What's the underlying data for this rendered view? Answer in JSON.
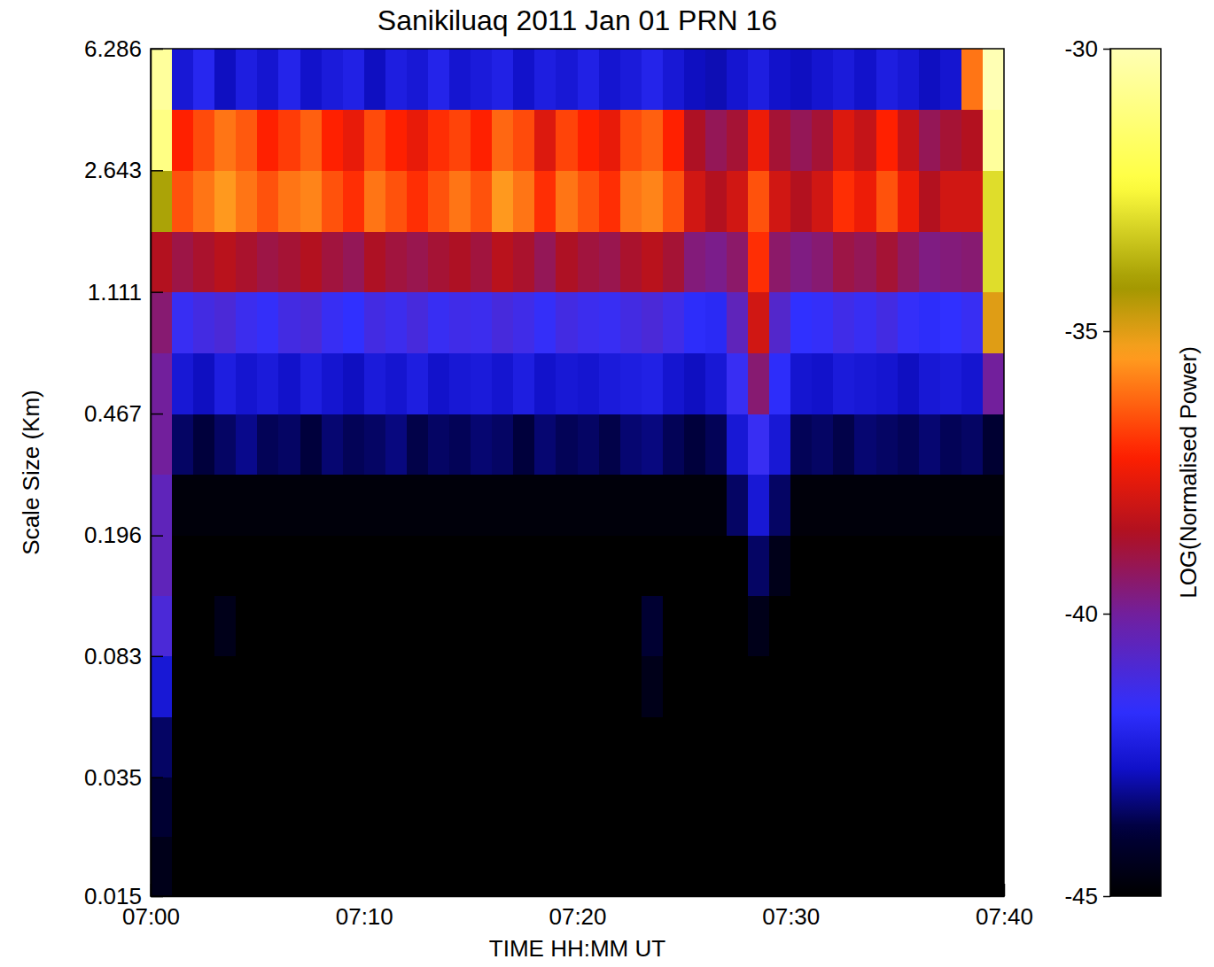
{
  "chart_data": {
    "type": "heatmap",
    "title": "Sanikiluaq 2011 Jan 01 PRN 16",
    "x_label": "TIME HH:MM UT",
    "y_label": "Scale Size (Km)",
    "colorbar_label": "LOG(Normalised Power)",
    "log": "y",
    "grid": false,
    "xlim": [
      0,
      40
    ],
    "xticks": [
      {
        "value": 0,
        "label": "07:00"
      },
      {
        "value": 10,
        "label": "07:10"
      },
      {
        "value": 20,
        "label": "07:20"
      },
      {
        "value": 30,
        "label": "07:30"
      },
      {
        "value": 40,
        "label": "07:40"
      }
    ],
    "ylim": [
      0.015,
      6.286
    ],
    "yticks": [
      0.015,
      0.035,
      0.083,
      0.196,
      0.467,
      1.111,
      2.643,
      6.286
    ],
    "zlim": [
      -45,
      -30
    ],
    "zticks": [
      -45,
      -40,
      -35,
      -30
    ],
    "x_edges": [
      0,
      1,
      2,
      3,
      4,
      5,
      6,
      7,
      8,
      9,
      10,
      11,
      12,
      13,
      14,
      15,
      16,
      17,
      18,
      19,
      20,
      21,
      22,
      23,
      24,
      25,
      26,
      27,
      28,
      29,
      30,
      31,
      32,
      33,
      34,
      35,
      36,
      37,
      38,
      39,
      40
    ],
    "y_edges": [
      0.015,
      0.023,
      0.035,
      0.054,
      0.083,
      0.128,
      0.196,
      0.303,
      0.467,
      0.72,
      1.111,
      1.714,
      2.643,
      4.076,
      6.286
    ],
    "z": [
      [
        -44.5,
        -45,
        -45,
        -45,
        -45,
        -45,
        -45,
        -45,
        -45,
        -45,
        -45,
        -45,
        -45,
        -45,
        -45,
        -45,
        -45,
        -45,
        -45,
        -45,
        -45,
        -45,
        -45,
        -45,
        -45,
        -45,
        -45,
        -45,
        -45,
        -45,
        -45,
        -45,
        -45,
        -45,
        -45,
        -45,
        -45,
        -45,
        -45,
        -45
      ],
      [
        -44,
        -45,
        -45,
        -45,
        -45,
        -45,
        -45,
        -45,
        -45,
        -45,
        -45,
        -45,
        -45,
        -45,
        -45,
        -45,
        -45,
        -45,
        -45,
        -45,
        -45,
        -45,
        -45,
        -45,
        -45,
        -45,
        -45,
        -45,
        -45,
        -45,
        -45,
        -45,
        -45,
        -45,
        -45,
        -45,
        -45,
        -45,
        -45,
        -45
      ],
      [
        -43.5,
        -45,
        -45,
        -45,
        -45,
        -45,
        -45,
        -45,
        -45,
        -45,
        -45,
        -45,
        -45,
        -45,
        -45,
        -45,
        -45,
        -45,
        -45,
        -45,
        -45,
        -45,
        -45,
        -45,
        -45,
        -45,
        -45,
        -45,
        -45,
        -45,
        -45,
        -45,
        -45,
        -45,
        -45,
        -45,
        -45,
        -45,
        -45,
        -45
      ],
      [
        -42.5,
        -45,
        -45,
        -45,
        -45,
        -45,
        -45,
        -45,
        -45,
        -45,
        -45,
        -45,
        -45,
        -45,
        -45,
        -45,
        -45,
        -45,
        -45,
        -45,
        -45,
        -45,
        -45,
        -44.5,
        -45,
        -45,
        -45,
        -45,
        -45,
        -45,
        -45,
        -45,
        -45,
        -45,
        -45,
        -45,
        -45,
        -45,
        -45,
        -45
      ],
      [
        -41,
        -45,
        -45,
        -44.5,
        -45,
        -45,
        -45,
        -45,
        -45,
        -45,
        -45,
        -45,
        -45,
        -45,
        -45,
        -45,
        -45,
        -45,
        -45,
        -45,
        -45,
        -45,
        -45,
        -44,
        -45,
        -45,
        -45,
        -45,
        -44.5,
        -45,
        -45,
        -45,
        -45,
        -45,
        -45,
        -45,
        -45,
        -45,
        -45,
        -45
      ],
      [
        -40.5,
        -45,
        -45,
        -45,
        -45,
        -45,
        -45,
        -45,
        -45,
        -45,
        -45,
        -45,
        -45,
        -45,
        -45,
        -45,
        -45,
        -45,
        -45,
        -45,
        -45,
        -45,
        -45,
        -45,
        -45,
        -45,
        -45,
        -45,
        -43.5,
        -44.5,
        -45,
        -45,
        -45,
        -45,
        -45,
        -45,
        -45,
        -45,
        -45,
        -45
      ],
      [
        -40.5,
        -44.8,
        -44.8,
        -44.8,
        -44.8,
        -44.8,
        -44.8,
        -44.8,
        -44.8,
        -44.8,
        -44.8,
        -44.8,
        -44.8,
        -44.8,
        -44.8,
        -44.8,
        -44.8,
        -44.8,
        -44.8,
        -44.8,
        -44.8,
        -44.8,
        -44.8,
        -44.8,
        -44.8,
        -44.8,
        -44.8,
        -43.5,
        -42.5,
        -43.5,
        -44.8,
        -44.8,
        -44.8,
        -44.8,
        -44.8,
        -44.8,
        -44.8,
        -44.8,
        -44.8,
        -44.8
      ],
      [
        -40,
        -43.5,
        -43.8,
        -43.5,
        -43.2,
        -43.6,
        -43.5,
        -43.8,
        -43.4,
        -43.6,
        -43.5,
        -43.3,
        -43.7,
        -43.5,
        -43.6,
        -43.4,
        -43.5,
        -43.8,
        -43.4,
        -43.6,
        -43.5,
        -43.7,
        -43.4,
        -43.3,
        -43.6,
        -43.8,
        -43.6,
        -42.5,
        -41.5,
        -42.5,
        -43.6,
        -43.5,
        -43.7,
        -43.4,
        -43.5,
        -43.6,
        -43.4,
        -43.6,
        -43.5,
        -44
      ],
      [
        -40,
        -42.5,
        -42.8,
        -42.3,
        -42.6,
        -42.4,
        -42.7,
        -42.3,
        -42.6,
        -42.8,
        -42.4,
        -42.6,
        -42.3,
        -42.7,
        -42.5,
        -42.4,
        -42.6,
        -42.3,
        -42.7,
        -42.5,
        -42.6,
        -42.4,
        -42.3,
        -42.2,
        -42.6,
        -42.8,
        -42.5,
        -41.5,
        -39.5,
        -41.8,
        -42.6,
        -42.7,
        -42.4,
        -42.5,
        -42.6,
        -42.8,
        -42.5,
        -42.4,
        -42.6,
        -40
      ],
      [
        -39.5,
        -41.5,
        -41.2,
        -41,
        -41.4,
        -41.6,
        -41.2,
        -41,
        -41.5,
        -41.7,
        -41.2,
        -41.4,
        -41.1,
        -41.5,
        -41.3,
        -41.4,
        -41.1,
        -41.3,
        -41.6,
        -41.2,
        -41.4,
        -41.5,
        -41.2,
        -41,
        -41.3,
        -41.8,
        -41.9,
        -40.5,
        -38,
        -40.8,
        -41.7,
        -41.6,
        -41.3,
        -41.5,
        -41.2,
        -41.6,
        -41.8,
        -41.7,
        -41.5,
        -35
      ],
      [
        -38.5,
        -39,
        -38.7,
        -38.4,
        -38.7,
        -39,
        -38.8,
        -38.5,
        -38.9,
        -39.2,
        -38.6,
        -38.9,
        -39.1,
        -38.8,
        -38.6,
        -38.9,
        -38.4,
        -38.7,
        -39.2,
        -38.6,
        -38.9,
        -39.1,
        -38.7,
        -38.4,
        -38.8,
        -39.6,
        -39.8,
        -39.4,
        -37,
        -39.4,
        -39.7,
        -39.5,
        -39,
        -39.2,
        -38.8,
        -39.3,
        -39.7,
        -39.6,
        -39.5,
        -33
      ],
      [
        -34,
        -36.5,
        -36,
        -35.5,
        -36,
        -36.5,
        -36,
        -35.8,
        -36.5,
        -37,
        -36,
        -36.5,
        -37,
        -36.5,
        -36,
        -36.5,
        -35.5,
        -36,
        -37,
        -36,
        -36.5,
        -37,
        -36,
        -35.8,
        -36.5,
        -38,
        -38.5,
        -38,
        -36.5,
        -38,
        -38.5,
        -38,
        -37,
        -37.5,
        -36.5,
        -37.5,
        -38.5,
        -38,
        -38,
        -33
      ],
      [
        -31,
        -37.2,
        -36.6,
        -36,
        -36.4,
        -37.2,
        -36.8,
        -36.3,
        -37.2,
        -37.6,
        -36.6,
        -37.2,
        -37.6,
        -37,
        -36.7,
        -37.2,
        -36.2,
        -36.6,
        -37.8,
        -36.7,
        -37.2,
        -37.6,
        -36.6,
        -36.3,
        -37.2,
        -38.6,
        -39.2,
        -38.8,
        -37.5,
        -38.8,
        -39.2,
        -38.8,
        -37.8,
        -38.2,
        -37.2,
        -38.2,
        -39.2,
        -38.8,
        -38.5,
        -30.5
      ],
      [
        -30.5,
        -42.5,
        -42,
        -42.8,
        -42.3,
        -42.6,
        -42.1,
        -42.7,
        -42.4,
        -42.2,
        -42.8,
        -42.3,
        -42.5,
        -42.1,
        -42.6,
        -42.4,
        -42.2,
        -42.7,
        -42.3,
        -42.5,
        -42.2,
        -42.6,
        -42.4,
        -42.1,
        -42.5,
        -42.8,
        -42.9,
        -42.6,
        -42.3,
        -42.7,
        -42.8,
        -42.6,
        -42.4,
        -42.7,
        -42.3,
        -42.5,
        -42.8,
        -42.6,
        -36,
        -30
      ]
    ]
  }
}
